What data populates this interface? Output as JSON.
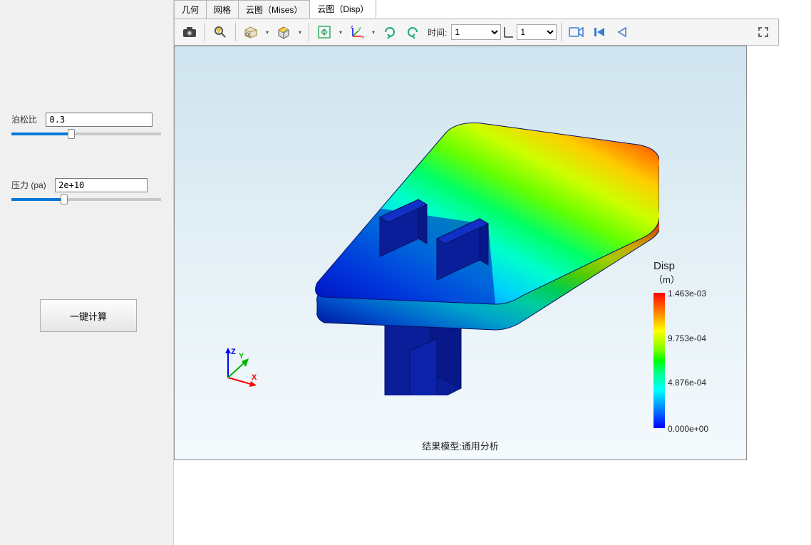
{
  "left_panel": {
    "poisson": {
      "label": "泊松比",
      "value": "0.3",
      "slider_pct": 40
    },
    "pressure": {
      "label": "压力 (pa)",
      "value": "2e+10",
      "slider_pct": 35
    },
    "calc_button": "一键计算"
  },
  "tabs": {
    "items": [
      "几何",
      "网格",
      "云图（Mises）",
      "云图（Disp）"
    ],
    "active_index": 3
  },
  "toolbar": {
    "time_label": "时间:",
    "time_value": "1",
    "frame_value": "1",
    "icons": {
      "camera": "camera-icon",
      "lightning": "flash-search-icon",
      "box": "view-box-icon",
      "cube": "shade-cube-icon",
      "fit": "fit-view-icon",
      "axes": "axis-orient-icon",
      "rotate_cw": "rotate-cw-icon",
      "rotate_ccw": "rotate-ccw-icon",
      "rec": "record-icon",
      "first": "first-frame-icon",
      "prev": "prev-frame-icon",
      "expand": "expand-icon"
    }
  },
  "viewport": {
    "background_gradient": [
      "#cfe4ef",
      "#e4f0f6",
      "#f4fafd"
    ],
    "caption": "结果模型:通用分析",
    "axis_labels": {
      "x": "X",
      "y": "Y",
      "z": "Z"
    },
    "axis_colors": {
      "x": "#ff0000",
      "y": "#00b400",
      "z": "#0000ff"
    },
    "model": {
      "type": "fea_contour_isometric",
      "contour_colors": [
        "#0000ff",
        "#0066ff",
        "#00ccff",
        "#00ffcc",
        "#00ff66",
        "#66ff00",
        "#ccff00",
        "#ffcc00",
        "#ff6600",
        "#ff0000"
      ],
      "base_color": "#0a1e9a",
      "edge_color": "#061260"
    }
  },
  "legend": {
    "title": "Disp",
    "unit": "（m）",
    "bar_colors": [
      "#ff0000",
      "#ff7f00",
      "#ffff00",
      "#7fff00",
      "#00ff00",
      "#00ff7f",
      "#00ffff",
      "#007fff",
      "#0000ff"
    ],
    "ticks": [
      {
        "label": "1.463e-03",
        "pos_pct": 0
      },
      {
        "label": "9.753e-04",
        "pos_pct": 33
      },
      {
        "label": "4.876e-04",
        "pos_pct": 66
      },
      {
        "label": "0.000e+00",
        "pos_pct": 100
      }
    ]
  }
}
